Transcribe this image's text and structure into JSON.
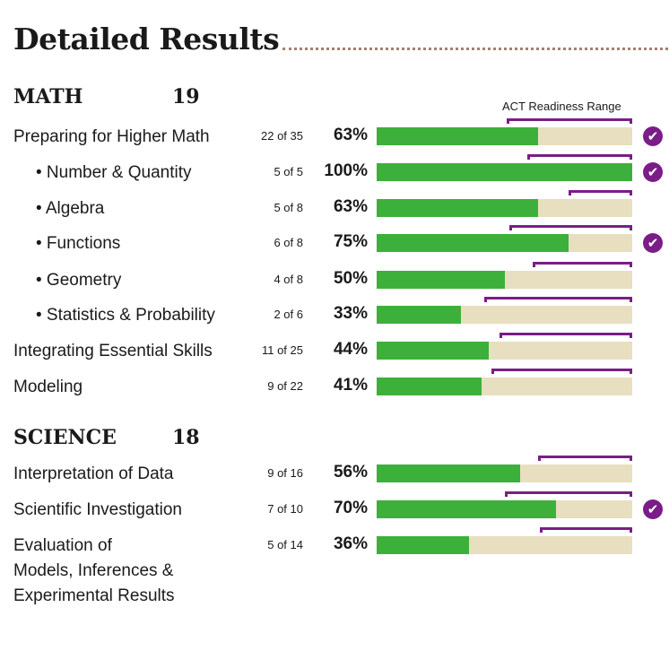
{
  "title": "Detailed Results",
  "range_label": "ACT Readiness Range",
  "colors": {
    "fill": "#3db03b",
    "track": "#e8dfc1",
    "range": "#7a1d86",
    "dots": "#a3816f"
  },
  "icons": {
    "check": "check-circle-icon",
    "check_glyph": "✔"
  },
  "chart_data": {
    "type": "bar",
    "orientation": "horizontal",
    "xlim": [
      0,
      100
    ],
    "sections": [
      {
        "name": "MATH",
        "score": "19",
        "rows": [
          {
            "label": "Preparing for Higher Math",
            "indent": false,
            "count": "22 of 35",
            "percent_label": "63%",
            "value": 63,
            "range": [
              51,
              100
            ],
            "check": true
          },
          {
            "label": "• Number & Quantity",
            "indent": true,
            "count": "5 of 5",
            "percent_label": "100%",
            "value": 100,
            "range": [
              59,
              100
            ],
            "check": true
          },
          {
            "label": "• Algebra",
            "indent": true,
            "count": "5 of 8",
            "percent_label": "63%",
            "value": 63,
            "range": [
              75,
              100
            ],
            "check": false
          },
          {
            "label": "• Functions",
            "indent": true,
            "count": "6 of 8",
            "percent_label": "75%",
            "value": 75,
            "range": [
              52,
              100
            ],
            "check": true
          },
          {
            "label": "• Geometry",
            "indent": true,
            "count": "4 of 8",
            "percent_label": "50%",
            "value": 50,
            "range": [
              61,
              100
            ],
            "check": false
          },
          {
            "label": "• Statistics & Probability",
            "indent": true,
            "count": "2 of 6",
            "percent_label": "33%",
            "value": 33,
            "range": [
              42,
              100
            ],
            "check": false
          },
          {
            "label": "Integrating Essential Skills",
            "indent": false,
            "count": "11 of 25",
            "percent_label": "44%",
            "value": 44,
            "range": [
              48,
              100
            ],
            "check": false
          },
          {
            "label": "Modeling",
            "indent": false,
            "count": "9 of 22",
            "percent_label": "41%",
            "value": 41,
            "range": [
              45,
              100
            ],
            "check": false
          }
        ]
      },
      {
        "name": "SCIENCE",
        "score": "18",
        "rows": [
          {
            "label": "Interpretation of Data",
            "indent": false,
            "count": "9 of 16",
            "percent_label": "56%",
            "value": 56,
            "range": [
              63,
              100
            ],
            "check": false
          },
          {
            "label": "Scientific Investigation",
            "indent": false,
            "count": "7 of 10",
            "percent_label": "70%",
            "value": 70,
            "range": [
              50,
              100
            ],
            "check": true
          },
          {
            "label": "Evaluation of\nModels, Inferences &\nExperimental Results",
            "indent": false,
            "count": "5 of 14",
            "percent_label": "36%",
            "value": 36,
            "range": [
              64,
              100
            ],
            "check": false
          }
        ]
      }
    ]
  }
}
